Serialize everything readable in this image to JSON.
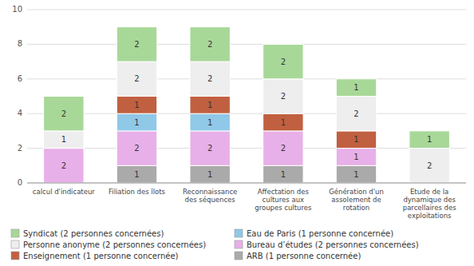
{
  "chart_data": {
    "type": "bar",
    "stacked": true,
    "categories": [
      "calcul d'indicateur",
      "Filiation des îlots",
      "Reconnaissance\ndes séquences",
      "Affectation des\ncultures aux\ngroupes cultures",
      "Génération d'un\nassolement de\nrotation",
      "Etude de la\ndynamique des\nparcellaires des\nexploitations"
    ],
    "series": [
      {
        "name": "ARB (1 personne concernée)",
        "color": "#aaaaaa",
        "values": [
          0,
          1,
          1,
          1,
          1,
          0
        ]
      },
      {
        "name": "Bureau d’études (2 personnes concernées)",
        "color": "#e8b0e8",
        "values": [
          2,
          2,
          2,
          2,
          1,
          0
        ]
      },
      {
        "name": "Eau de Paris (1 personne concernée)",
        "color": "#90c8e8",
        "values": [
          0,
          1,
          1,
          0,
          0,
          0
        ]
      },
      {
        "name": "Enseignement (1 personne concernée)",
        "color": "#c06040",
        "values": [
          0,
          1,
          1,
          1,
          1,
          0
        ]
      },
      {
        "name": "Personne anonyme (2 personnes concernées)",
        "color": "#eeeeee",
        "values": [
          1,
          2,
          2,
          2,
          2,
          2
        ]
      },
      {
        "name": "Syndicat (2 personnes concernées)",
        "color": "#a8d898",
        "values": [
          2,
          2,
          2,
          2,
          1,
          1
        ]
      }
    ],
    "ylim": [
      0,
      10
    ],
    "yticks": [
      0,
      2,
      4,
      6,
      8,
      10
    ],
    "grid": true,
    "data_labels": true,
    "legend": "bottom"
  }
}
